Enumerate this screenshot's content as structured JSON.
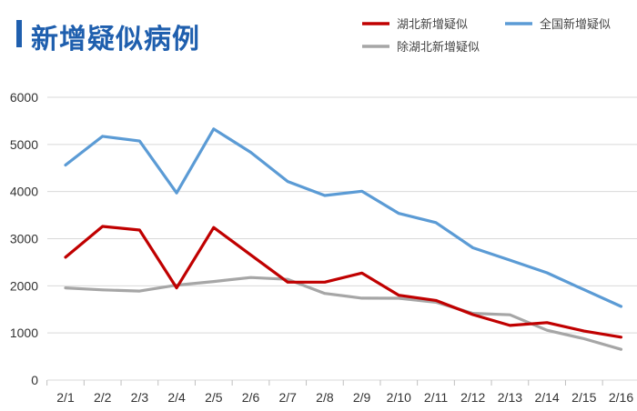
{
  "title": "新增疑似病例",
  "colors": {
    "title": "#1f5fae",
    "grid": "#d9d9d9"
  },
  "chart_data": {
    "type": "line",
    "x": [
      "2/1",
      "2/2",
      "2/3",
      "2/4",
      "2/5",
      "2/6",
      "2/7",
      "2/8",
      "2/9",
      "2/10",
      "2/11",
      "2/12",
      "2/13",
      "2/14",
      "2/15",
      "2/16"
    ],
    "ylim": [
      0,
      6000
    ],
    "yticks": [
      0,
      1000,
      2000,
      3000,
      4000,
      5000,
      6000
    ],
    "grid": true,
    "legend_position": "top-right",
    "series": [
      {
        "name": "湖北新增疑似",
        "color": "#c00000",
        "values": [
          2606,
          3260,
          3183,
          1957,
          3237,
          2656,
          2077,
          2077,
          2270,
          1800,
          1690,
          1390,
          1160,
          1220,
          1040,
          910
        ]
      },
      {
        "name": "全国新增疑似",
        "color": "#5b9bd5",
        "values": [
          4562,
          5173,
          5072,
          3971,
          5328,
          4833,
          4214,
          3916,
          4008,
          3536,
          3342,
          2807,
          2545,
          2277,
          1918,
          1563
        ]
      },
      {
        "name": "除湖北新增疑似",
        "color": "#a6a6a6",
        "values": [
          1956,
          1913,
          1889,
          2014,
          2091,
          2177,
          2137,
          1839,
          1738,
          1736,
          1652,
          1417,
          1385,
          1057,
          878,
          653
        ]
      }
    ]
  }
}
